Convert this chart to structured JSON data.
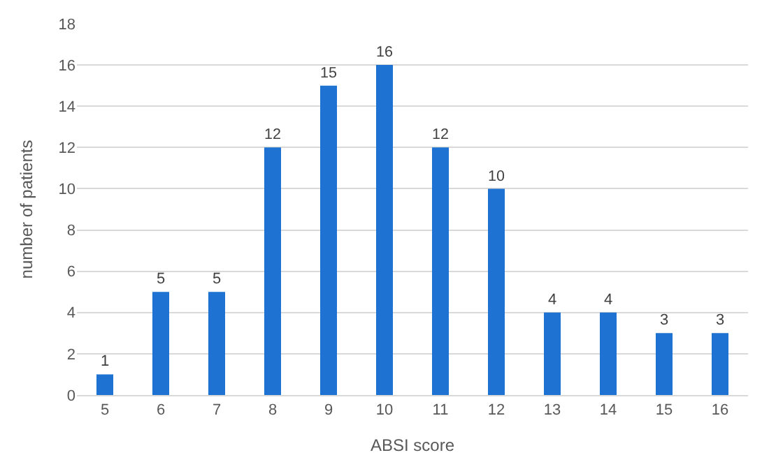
{
  "chart_data": {
    "type": "bar",
    "xlabel": "ABSI score",
    "ylabel": "number of patients",
    "categories": [
      "5",
      "6",
      "7",
      "8",
      "9",
      "10",
      "11",
      "12",
      "13",
      "14",
      "15",
      "16"
    ],
    "values": [
      1,
      5,
      5,
      12,
      15,
      16,
      12,
      10,
      4,
      4,
      3,
      3
    ],
    "color": "#1e73d2",
    "ylim": [
      0,
      18
    ],
    "yticks": [
      0,
      2,
      4,
      6,
      8,
      10,
      12,
      14,
      16,
      18
    ],
    "grid": "y",
    "data_labels": true
  }
}
